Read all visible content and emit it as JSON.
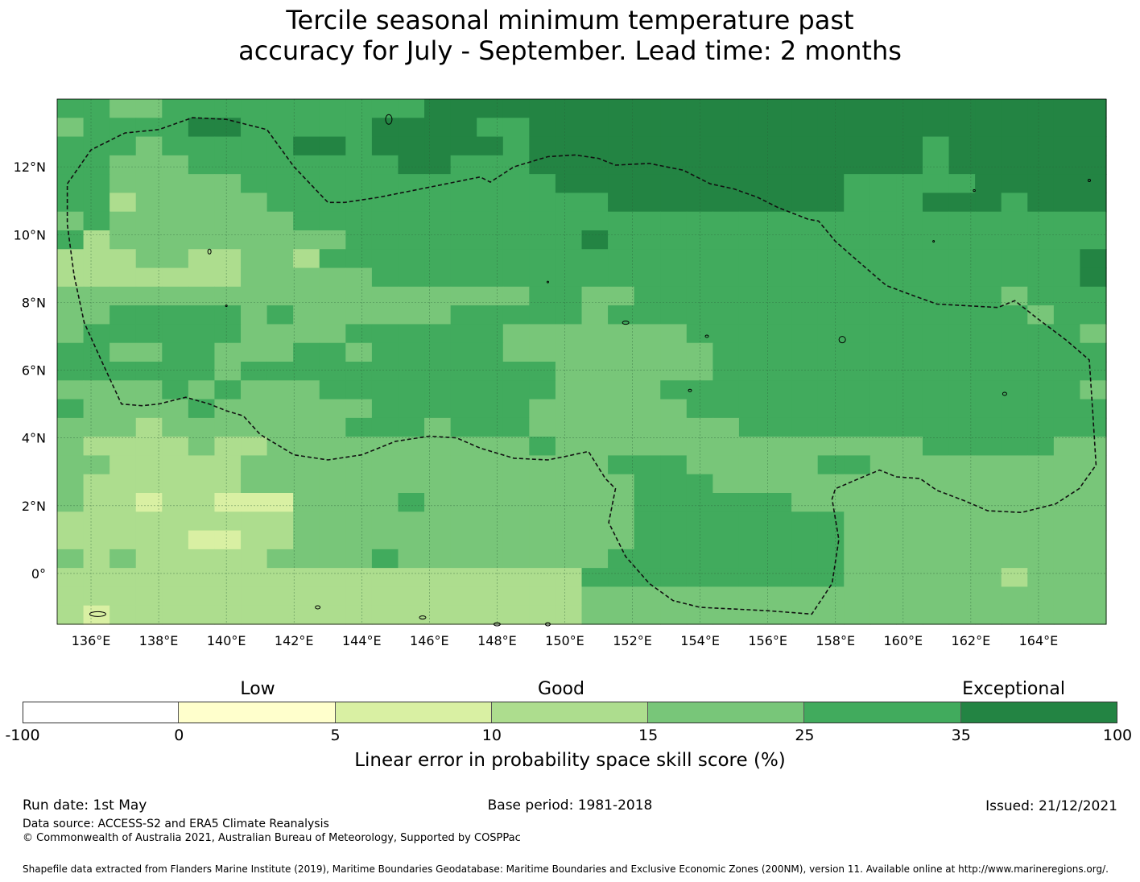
{
  "title_line1": "Tercile seasonal minimum temperature past",
  "title_line2": "accuracy for July - September. Lead time: 2 months",
  "map": {
    "lon_range": [
      135,
      166
    ],
    "lat_range": [
      -1.5,
      14
    ],
    "cell_size_deg": 0.833,
    "x_ticks": [
      "136°E",
      "138°E",
      "140°E",
      "142°E",
      "144°E",
      "146°E",
      "148°E",
      "150°E",
      "152°E",
      "154°E",
      "156°E",
      "158°E",
      "160°E",
      "162°E",
      "164°E"
    ],
    "y_ticks": [
      "12°N",
      "10°N",
      "8°N",
      "6°N",
      "4°N",
      "2°N",
      "0°"
    ],
    "grid": true,
    "boundary": "dashed EEZ outline",
    "category_colors": [
      "#ffffff",
      "#ffffcc",
      "#d9f0a3",
      "#addd8e",
      "#78c679",
      "#41ab5d",
      "#238443"
    ]
  },
  "colorbar": {
    "categories": [
      "Low",
      "Good",
      "Exceptional"
    ],
    "tick_labels": [
      "-100",
      "0",
      "5",
      "10",
      "15",
      "25",
      "35",
      "100"
    ],
    "colors": [
      "#ffffff",
      "#ffffcc",
      "#d9f0a3",
      "#addd8e",
      "#78c679",
      "#41ab5d",
      "#238443"
    ],
    "label": "Linear error in probability space skill score (%)"
  },
  "footer": {
    "run_date": "Run date: 1st May",
    "base_period": "Base period: 1981-2018",
    "issued": "Issued: 21/12/2021",
    "data_source": "Data source: ACCESS-S2 and ERA5 Climate Reanalysis",
    "copyright": "© Commonwealth of Australia 2021, Australian Bureau of Meteorology, Supported by COSPPac",
    "shapefile": "Shapefile data extracted from Flanders Marine Institute (2019), Maritime Boundaries Geodatabase: Maritime Boundaries and Exclusive Economic Zones (200NM), version 11. Available online at http://www.marineregions.org/."
  }
}
